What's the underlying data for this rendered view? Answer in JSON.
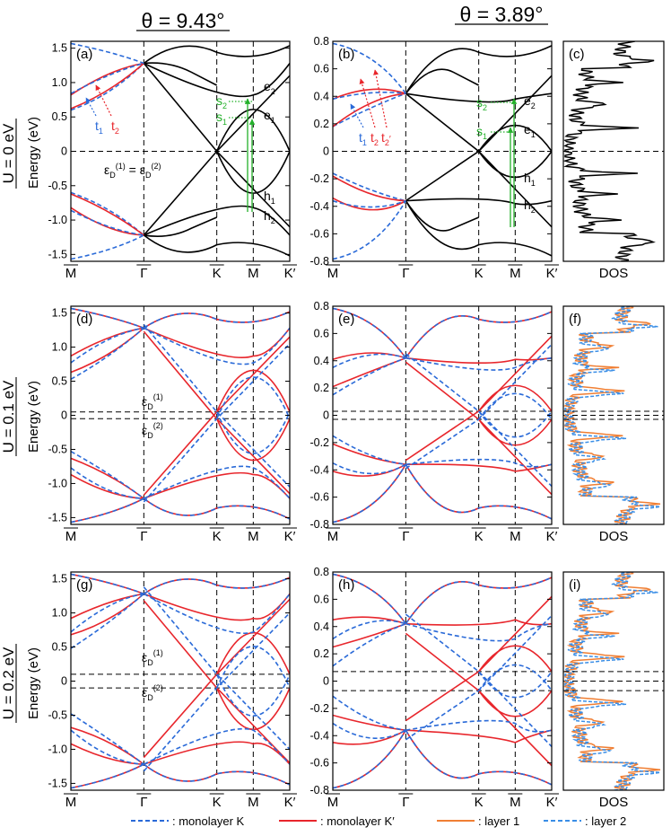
{
  "header": {
    "col1_title": "θ = 9.43°",
    "col2_title": "θ = 3.89°"
  },
  "rows": [
    {
      "u_label": "U = 0 eV",
      "ylabel": "Energy (eV)"
    },
    {
      "u_label": "U = 0.1 eV",
      "ylabel": "Energy (eV)"
    },
    {
      "u_label": "U = 0.2 eV",
      "ylabel": "Energy (eV)"
    }
  ],
  "axes": {
    "wide_yticks": [
      "1.5",
      "1.0",
      "0.5",
      "0",
      "-0.5",
      "-1.0",
      "-1.5"
    ],
    "wide_ytick_values": [
      1.5,
      1.0,
      0.5,
      0,
      -0.5,
      -1.0,
      -1.5
    ],
    "wide_ylim": [
      -1.6,
      1.6
    ],
    "narrow_yticks": [
      "0.8",
      "0.6",
      "0.4",
      "0.2",
      "0",
      "-0.2",
      "-0.4",
      "-0.6",
      "-0.8"
    ],
    "narrow_ytick_values": [
      0.8,
      0.6,
      0.4,
      0.2,
      0,
      -0.2,
      -0.4,
      -0.6,
      -0.8
    ],
    "narrow_ylim": [
      -0.8,
      0.8
    ],
    "kpath_labels": [
      "M",
      "Γ",
      "K",
      "M",
      "K′"
    ],
    "kpath_positions": [
      0,
      1,
      2,
      2.5,
      3
    ],
    "dos_xlabel": "DOS"
  },
  "panels": [
    {
      "id": "a",
      "label": "(a)"
    },
    {
      "id": "b",
      "label": "(b)"
    },
    {
      "id": "c",
      "label": "(c)"
    },
    {
      "id": "d",
      "label": "(d)"
    },
    {
      "id": "e",
      "label": "(e)"
    },
    {
      "id": "f",
      "label": "(f)"
    },
    {
      "id": "g",
      "label": "(g)"
    },
    {
      "id": "h",
      "label": "(h)"
    },
    {
      "id": "i",
      "label": "(i)"
    }
  ],
  "annotations": {
    "a": {
      "t1": "t",
      "t1_sub": "1",
      "t2": "t",
      "t2_sub": "2",
      "s1": "s",
      "s1_sub": "1",
      "s2": "s",
      "s2_sub": "2",
      "e1": "e",
      "e1_sub": "1",
      "e2": "e",
      "e2_sub": "2",
      "h1": "h",
      "h1_sub": "1",
      "h2": "h",
      "h2_sub": "2",
      "eqn": "ε",
      "eqn_sub1": "D",
      "eqn_sup1": "(1)",
      "eqn_mid": " = ε",
      "eqn_sub2": "D",
      "eqn_sup2": "(2)"
    },
    "b": {
      "t1": "t",
      "t1_sub": "1",
      "t2": "t",
      "t2_sub": "2",
      "t2p": "t",
      "t2p_sub": "2",
      "t2p_prime": "′",
      "s1": "s",
      "s1_sub": "1",
      "s2": "s",
      "s2_sub": "2",
      "e1": "e",
      "e1_sub": "1",
      "e2": "e",
      "e2_sub": "2",
      "h1": "h",
      "h1_sub": "1",
      "h2": "h",
      "h2_sub": "2"
    },
    "d": {
      "eps1": "ε",
      "eps1_sub": "D",
      "eps1_sup": "(1)",
      "eps2": "ε",
      "eps2_sub": "D",
      "eps2_sup": "(2)"
    },
    "g": {
      "eps1": "ε",
      "eps1_sub": "D",
      "eps1_sup": "(1)",
      "eps2": "ε",
      "eps2_sub": "D",
      "eps2_sup": "(2)"
    }
  },
  "legend": [
    {
      "label": ": monolayer K",
      "style": "dashed",
      "color": "#2a6ad8"
    },
    {
      "label": ": monolayer K′",
      "style": "solid",
      "color": "#e8262c"
    },
    {
      "label": ": layer 1",
      "style": "solid",
      "color": "#f07f34"
    },
    {
      "label": ": layer 2",
      "style": "dashed",
      "color": "#3a8ee6"
    }
  ],
  "colors": {
    "black": "#000000",
    "red": "#e8262c",
    "blue": "#2a6ad8",
    "orange": "#f07f34",
    "lightblue": "#3a8ee6",
    "green": "#23b02a"
  },
  "chart_data": [
    {
      "type": "line",
      "panel": "a",
      "title": "θ = 9.43°, U = 0 eV",
      "ylabel": "Energy (eV)",
      "ylim": [
        -1.6,
        1.6
      ],
      "x_ticks": [
        "M",
        "Γ",
        "K",
        "M",
        "K′"
      ],
      "key_levels_eV": {
        "dirac": 0,
        "e1": 0.58,
        "e2": 0.82,
        "h1": -0.58,
        "h2": -0.82,
        "Gamma_crossing": 1.28,
        "Gamma_crossing_lower": -1.22,
        "mono_M_lower": 0.6,
        "mono_M_upper": 0.82
      }
    },
    {
      "type": "line",
      "panel": "b",
      "title": "θ = 3.89°, U = 0 eV",
      "ylabel": "Energy (eV)",
      "ylim": [
        -0.8,
        0.8
      ],
      "x_ticks": [
        "M",
        "Γ",
        "K",
        "M",
        "K′"
      ],
      "key_levels_eV": {
        "dirac": 0,
        "e1": 0.18,
        "e2": 0.38,
        "h1": -0.18,
        "h2": -0.38,
        "Gamma_crossing": 0.42,
        "Gamma_crossing_lower": -0.36
      }
    },
    {
      "type": "line",
      "panel": "c",
      "title": "DOS, θ = 3.89°, U = 0 eV",
      "xlabel": "DOS",
      "ylim": [
        -0.8,
        0.8
      ],
      "peaks_eV": [
        0.17,
        0.34,
        -0.16,
        -0.31,
        0.5,
        -0.5
      ]
    },
    {
      "type": "line",
      "panel": "d",
      "title": "θ = 9.43°, U = 0.1 eV",
      "ylim": [
        -1.6,
        1.6
      ],
      "dirac_levels_eV": [
        0.05,
        -0.05
      ]
    },
    {
      "type": "line",
      "panel": "e",
      "title": "θ = 3.89°, U = 0.1 eV",
      "ylim": [
        -0.8,
        0.8
      ],
      "dirac_levels_eV": [
        0.03,
        -0.03
      ]
    },
    {
      "type": "line",
      "panel": "f",
      "title": "DOS, θ = 3.89°, U = 0.1 eV",
      "xlabel": "DOS",
      "ylim": [
        -0.8,
        0.8
      ],
      "series": [
        {
          "name": "layer 1"
        },
        {
          "name": "layer 2"
        }
      ]
    },
    {
      "type": "line",
      "panel": "g",
      "title": "θ = 9.43°, U = 0.2 eV",
      "ylim": [
        -1.6,
        1.6
      ],
      "dirac_levels_eV": [
        0.1,
        -0.1
      ]
    },
    {
      "type": "line",
      "panel": "h",
      "title": "θ = 3.89°, U = 0.2 eV",
      "ylim": [
        -0.8,
        0.8
      ],
      "dirac_levels_eV": [
        0.07,
        -0.07
      ]
    },
    {
      "type": "line",
      "panel": "i",
      "title": "DOS, θ = 3.89°, U = 0.2 eV",
      "xlabel": "DOS",
      "ylim": [
        -0.8,
        0.8
      ],
      "series": [
        {
          "name": "layer 1"
        },
        {
          "name": "layer 2"
        }
      ]
    }
  ]
}
